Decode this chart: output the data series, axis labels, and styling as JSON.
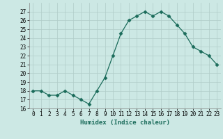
{
  "x": [
    0,
    1,
    2,
    3,
    4,
    5,
    6,
    7,
    8,
    9,
    10,
    11,
    12,
    13,
    14,
    15,
    16,
    17,
    18,
    19,
    20,
    21,
    22,
    23
  ],
  "y": [
    18,
    18,
    17.5,
    17.5,
    18,
    17.5,
    17,
    16.5,
    18,
    19.5,
    22,
    24.5,
    26,
    26.5,
    27,
    26.5,
    27,
    26.5,
    25.5,
    24.5,
    23,
    22.5,
    22,
    21
  ],
  "xlabel": "Humidex (Indice chaleur)",
  "ylim": [
    16,
    28
  ],
  "xlim": [
    -0.5,
    23.5
  ],
  "yticks": [
    16,
    17,
    18,
    19,
    20,
    21,
    22,
    23,
    24,
    25,
    26,
    27
  ],
  "xticks": [
    0,
    1,
    2,
    3,
    4,
    5,
    6,
    7,
    8,
    9,
    10,
    11,
    12,
    13,
    14,
    15,
    16,
    17,
    18,
    19,
    20,
    21,
    22,
    23
  ],
  "line_color": "#1a6b5a",
  "marker": "D",
  "marker_size": 2.5,
  "bg_color": "#cce8e4",
  "grid_color": "#b0ccc8",
  "label_fontsize": 6.5,
  "tick_fontsize": 5.5
}
